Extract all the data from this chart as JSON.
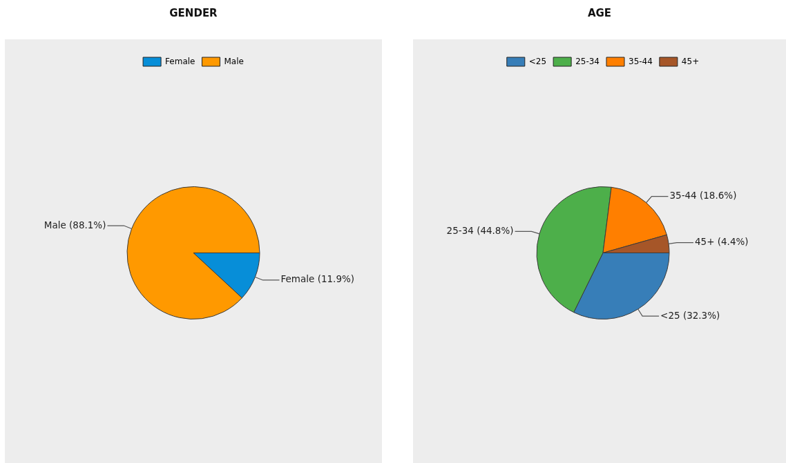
{
  "chart_data": [
    {
      "type": "pie",
      "title": "GENDER",
      "categories": [
        "Female",
        "Male"
      ],
      "values": [
        11.9,
        88.1
      ],
      "colors": [
        "#078ed8",
        "#ff9900"
      ],
      "value_labels": [
        "Female (11.9%)",
        "Male (88.1%)"
      ],
      "legend": "top"
    },
    {
      "type": "pie",
      "title": "AGE",
      "categories": [
        "<25",
        "25-34",
        "35-44",
        "45+"
      ],
      "values": [
        32.3,
        44.8,
        18.6,
        4.4
      ],
      "colors": [
        "#377eb8",
        "#4daf4a",
        "#ff7f00",
        "#a65628"
      ],
      "value_labels": [
        "<25 (32.3%)",
        "25-34 (44.8%)",
        "35-44 (18.6%)",
        "45+ (4.4%)"
      ],
      "legend": "top"
    }
  ]
}
